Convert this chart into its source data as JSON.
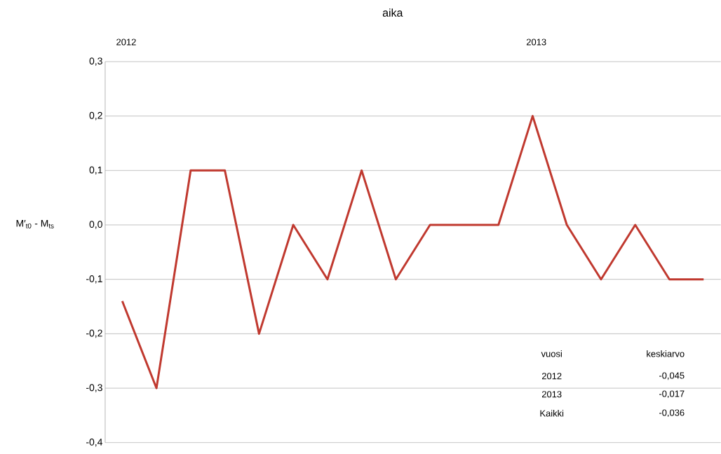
{
  "chart_data": {
    "type": "line",
    "title": "aika",
    "ylabel": "M′$_{t0}$ - M$_{ts}$",
    "categories": [
      null,
      null,
      null,
      null,
      null,
      null,
      null,
      null,
      null,
      null,
      null,
      null,
      null,
      null,
      null,
      null,
      null,
      null
    ],
    "series": [
      {
        "color": "#c0392f",
        "values": [
          -0.14,
          -0.3,
          0.1,
          0.1,
          -0.2,
          0,
          -0.1,
          0.1,
          -0.1,
          0,
          0,
          0,
          0.2,
          0,
          -0.1,
          0,
          -0.1,
          -0.1
        ]
      }
    ],
    "ylim": [
      -0.4,
      0.3
    ],
    "yticks": [
      {
        "value": 0.3,
        "label": "0,3"
      },
      {
        "value": 0.2,
        "label": "0,2"
      },
      {
        "value": 0.1,
        "label": "0,1"
      },
      {
        "value": 0,
        "label": "0,0"
      },
      {
        "value": -0.1,
        "label": "-0,1"
      },
      {
        "value": -0.2,
        "label": "-0,2"
      },
      {
        "value": -0.3,
        "label": "-0,3"
      },
      {
        "value": -0.4,
        "label": "-0,4"
      }
    ],
    "grid": "y",
    "annotations": [
      "2012",
      "2013",
      "vuosi",
      "keskiarvo",
      "2012",
      "-0,045",
      "2013",
      "-0,017",
      "Kaikki",
      "-0,036"
    ]
  }
}
